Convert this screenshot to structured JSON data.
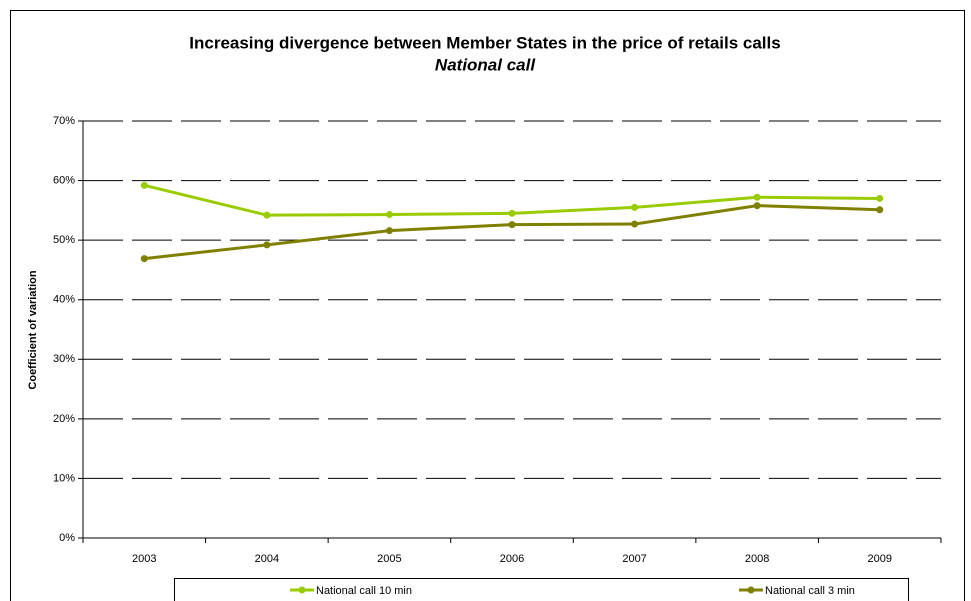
{
  "chart_data": {
    "type": "line",
    "title": "Increasing divergence between Member States in the price of retails calls",
    "subtitle": "National call",
    "y_label": "Coefficient of variation",
    "categories": [
      "2003",
      "2004",
      "2005",
      "2006",
      "2007",
      "2008",
      "2009"
    ],
    "series": [
      {
        "name": "National call 10 min",
        "color": "#99cc00",
        "values": [
          59.2,
          54.2,
          54.3,
          54.5,
          55.5,
          57.2,
          57.0
        ]
      },
      {
        "name": "National call 3 min",
        "color": "#808000",
        "values": [
          46.9,
          49.2,
          51.6,
          52.6,
          52.7,
          55.8,
          55.1
        ]
      }
    ],
    "ylim": [
      0,
      70
    ],
    "yticks": [
      {
        "value": 0,
        "label": "0%"
      },
      {
        "value": 10,
        "label": "10%"
      },
      {
        "value": 20,
        "label": "20%"
      },
      {
        "value": 30,
        "label": "30%"
      },
      {
        "value": 40,
        "label": "40%"
      },
      {
        "value": 50,
        "label": "50%"
      },
      {
        "value": 60,
        "label": "60%"
      },
      {
        "value": 70,
        "label": "70%"
      }
    ],
    "grid": true,
    "legend": "bottom"
  }
}
